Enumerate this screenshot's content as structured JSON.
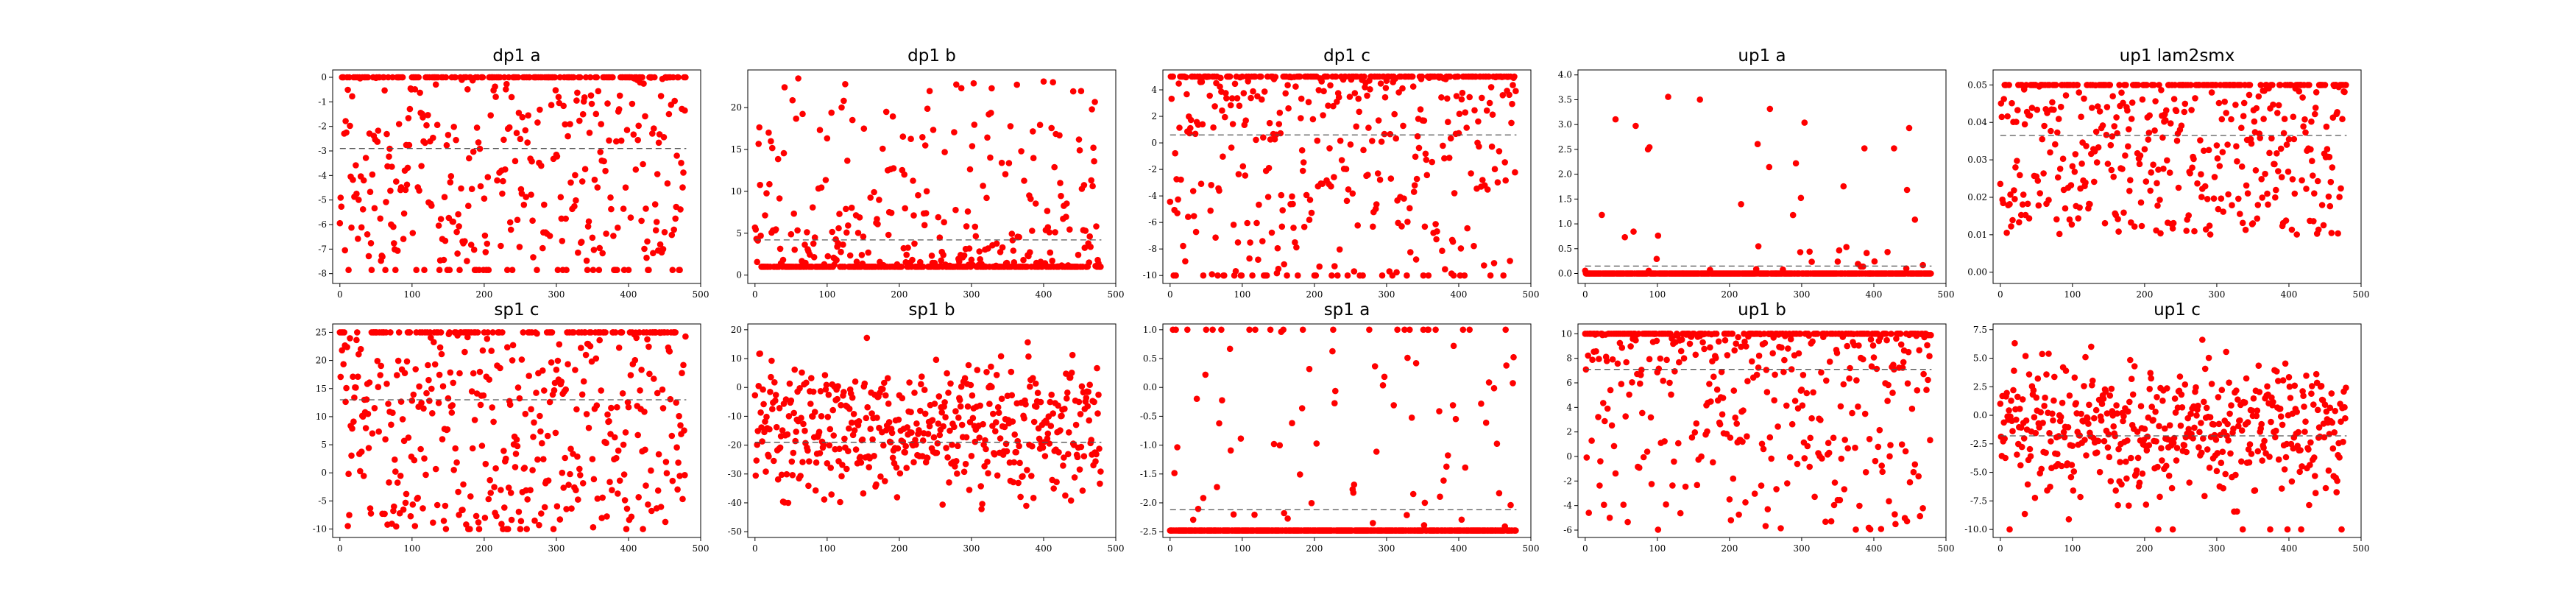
{
  "figure": {
    "rows": 2,
    "cols": 5
  },
  "style": {
    "marker_color": "#ff0000",
    "reference_line_color": "#555555",
    "reference_line_style": "dashed",
    "grid": false
  },
  "chart_data": [
    {
      "type": "scatter",
      "title": "dp1 a",
      "xlim": [
        -10,
        500
      ],
      "ylim": [
        -8.4,
        0.3
      ],
      "xticks": [
        0,
        100,
        200,
        300,
        400,
        500
      ],
      "yticks": [
        0,
        -1,
        -2,
        -3,
        -4,
        -5,
        -6,
        -7,
        -8
      ],
      "ref_line": -2.9,
      "n": 480,
      "sat_top": 0.0,
      "sat_bottom": -7.85,
      "sat_top_frac": 0.3,
      "sat_bottom_frac": 0.1,
      "body_range": [
        -7.5,
        0.0
      ],
      "body_shape": "uniform"
    },
    {
      "type": "scatter",
      "title": "dp1 b",
      "xlim": [
        -10,
        500
      ],
      "ylim": [
        -1,
        24.5
      ],
      "xticks": [
        0,
        100,
        200,
        300,
        400,
        500
      ],
      "yticks": [
        0,
        5,
        10,
        15,
        20
      ],
      "ref_line": 4.2,
      "n": 480,
      "sat_top": null,
      "sat_bottom": 1.0,
      "sat_top_frac": 0,
      "sat_bottom_frac": 0.45,
      "body_range": [
        1.0,
        23.5
      ],
      "body_shape": "low"
    },
    {
      "type": "scatter",
      "title": "dp1 c",
      "xlim": [
        -10,
        500
      ],
      "ylim": [
        -10.6,
        5.5
      ],
      "xticks": [
        0,
        100,
        200,
        300,
        400,
        500
      ],
      "yticks": [
        4,
        2,
        0,
        -2,
        -4,
        -6,
        -8,
        -10
      ],
      "ref_line": 0.6,
      "n": 480,
      "sat_top": 5.0,
      "sat_bottom": -10.0,
      "sat_top_frac": 0.28,
      "sat_bottom_frac": 0.05,
      "body_range": [
        -10.0,
        5.0
      ],
      "body_shape": "high"
    },
    {
      "type": "scatter",
      "title": "up1 a",
      "xlim": [
        -10,
        500
      ],
      "ylim": [
        -0.2,
        4.1
      ],
      "xticks": [
        0,
        100,
        200,
        300,
        400,
        500
      ],
      "yticks": [
        0.0,
        0.5,
        1.0,
        1.5,
        2.0,
        2.5,
        3.0,
        3.5,
        4.0
      ],
      "ref_line": 0.15,
      "n": 480,
      "sat_top": null,
      "sat_bottom": 0.0,
      "sat_top_frac": 0,
      "sat_bottom_frac": 0.88,
      "body_range": [
        0.05,
        4.0
      ],
      "body_shape": "low"
    },
    {
      "type": "scatter",
      "title": "up1 lam2smx",
      "xlim": [
        -10,
        500
      ],
      "ylim": [
        -0.003,
        0.054
      ],
      "xticks": [
        0,
        100,
        200,
        300,
        400,
        500
      ],
      "yticks": [
        0.0,
        0.01,
        0.02,
        0.03,
        0.04,
        0.05
      ],
      "ref_line": 0.0365,
      "n": 480,
      "sat_top": 0.05,
      "sat_bottom": null,
      "sat_top_frac": 0.3,
      "sat_bottom_frac": 0,
      "body_range": [
        0.01,
        0.05
      ],
      "body_shape": "uniform"
    },
    {
      "type": "scatter",
      "title": "sp1 c",
      "xlim": [
        -10,
        500
      ],
      "ylim": [
        -11.5,
        26.5
      ],
      "xticks": [
        0,
        100,
        200,
        300,
        400,
        500
      ],
      "yticks": [
        25,
        20,
        15,
        10,
        5,
        0,
        -5,
        -10
      ],
      "ref_line": 13.0,
      "n": 480,
      "sat_top": 25.0,
      "sat_bottom": -10.0,
      "sat_top_frac": 0.22,
      "sat_bottom_frac": 0.02,
      "body_range": [
        -10.0,
        25.0
      ],
      "body_shape": "uniform"
    },
    {
      "type": "scatter",
      "title": "sp1 b",
      "xlim": [
        -10,
        500
      ],
      "ylim": [
        -52,
        22
      ],
      "xticks": [
        0,
        100,
        200,
        300,
        400,
        500
      ],
      "yticks": [
        20,
        10,
        0,
        -10,
        -20,
        -30,
        -40,
        -50
      ],
      "ref_line": -19.0,
      "n": 480,
      "sat_top": null,
      "sat_bottom": null,
      "sat_top_frac": 0,
      "sat_bottom_frac": 0,
      "body_range": [
        -50.0,
        20.0
      ],
      "body_shape": "center"
    },
    {
      "type": "scatter",
      "title": "sp1 a",
      "xlim": [
        -10,
        500
      ],
      "ylim": [
        -2.6,
        1.1
      ],
      "xticks": [
        0,
        100,
        200,
        300,
        400,
        500
      ],
      "yticks": [
        1.0,
        0.5,
        0.0,
        -0.5,
        -1.0,
        -1.5,
        -2.0,
        -2.5
      ],
      "ref_line": -2.12,
      "n": 480,
      "sat_top": 1.0,
      "sat_bottom": -2.48,
      "sat_top_frac": 0.06,
      "sat_bottom_frac": 0.82,
      "body_range": [
        -2.45,
        1.0
      ],
      "body_shape": "uniform"
    },
    {
      "type": "scatter",
      "title": "up1 b",
      "xlim": [
        -10,
        500
      ],
      "ylim": [
        -6.6,
        10.8
      ],
      "xticks": [
        0,
        100,
        200,
        300,
        400,
        500
      ],
      "yticks": [
        10,
        8,
        6,
        4,
        2,
        0,
        -2,
        -4,
        -6
      ],
      "ref_line": 7.1,
      "n": 480,
      "sat_top": 10.0,
      "sat_bottom": null,
      "sat_top_frac": 0.3,
      "sat_bottom_frac": 0,
      "body_range": [
        -6.0,
        10.0
      ],
      "body_shape": "high"
    },
    {
      "type": "scatter",
      "title": "up1 c",
      "xlim": [
        -10,
        500
      ],
      "ylim": [
        -10.7,
        8.0
      ],
      "xticks": [
        0,
        100,
        200,
        300,
        400,
        500
      ],
      "yticks": [
        7.5,
        5.0,
        2.5,
        0.0,
        -2.5,
        -5.0,
        -7.5,
        -10.0
      ],
      "ref_line": -1.8,
      "n": 480,
      "sat_top": null,
      "sat_bottom": -10.0,
      "sat_top_frac": 0,
      "sat_bottom_frac": 0.02,
      "body_range": [
        -10.0,
        7.5
      ],
      "body_shape": "center"
    }
  ]
}
